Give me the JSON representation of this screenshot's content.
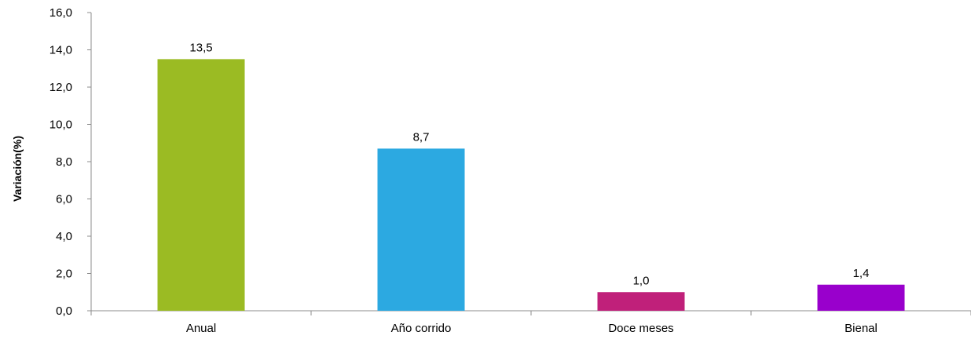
{
  "chart_data": {
    "type": "bar",
    "title": "",
    "xlabel": "",
    "ylabel": "Variación(%)",
    "categories": [
      "Anual",
      "Año corrido",
      "Doce meses",
      "Bienal"
    ],
    "values": [
      13.5,
      8.7,
      1.0,
      1.4
    ],
    "value_labels": [
      "13,5",
      "8,7",
      "1,0",
      "1,4"
    ],
    "colors": [
      "#9bbb23",
      "#2ca9e1",
      "#c0207a",
      "#9900cc"
    ],
    "ylim": [
      0,
      16
    ],
    "yticks": [
      0,
      2,
      4,
      6,
      8,
      10,
      12,
      14,
      16
    ],
    "ytick_labels": [
      "0,0",
      "2,0",
      "4,0",
      "6,0",
      "8,0",
      "10,0",
      "12,0",
      "14,0",
      "16,0"
    ],
    "grid": false,
    "legend": "none"
  }
}
